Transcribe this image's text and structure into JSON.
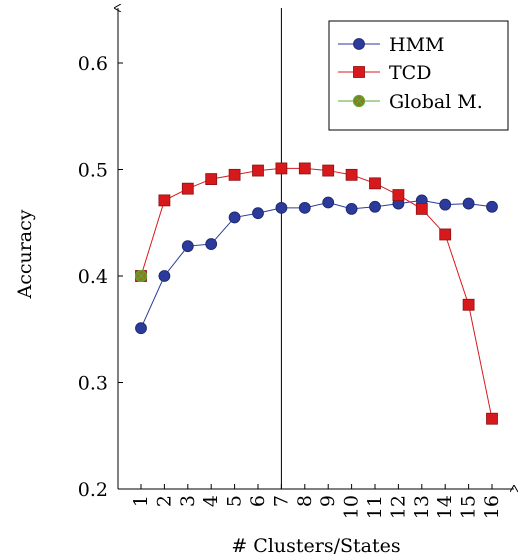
{
  "chart_data": {
    "type": "line",
    "title": "",
    "xlabel": "# Clusters/States",
    "ylabel": "Accuracy",
    "xlim": [
      0.2,
      16.6
    ],
    "ylim": [
      0.2,
      0.66
    ],
    "x_ticks": [
      "1",
      "2",
      "3",
      "4",
      "5",
      "6",
      "7",
      "8",
      "9",
      "10",
      "11",
      "12",
      "13",
      "14",
      "15",
      "16"
    ],
    "y_ticks": [
      "0.2",
      "0.3",
      "0.4",
      "0.5",
      "0.6"
    ],
    "reference_line_x": 7,
    "legend_position": "top-right",
    "grid": false,
    "series": [
      {
        "name": "HMM",
        "color": "#2b3a9b",
        "marker": "circle",
        "x": [
          1,
          2,
          3,
          4,
          5,
          6,
          7,
          8,
          9,
          10,
          11,
          12,
          13,
          14,
          15,
          16
        ],
        "values": [
          0.351,
          0.4,
          0.428,
          0.43,
          0.455,
          0.459,
          0.464,
          0.464,
          0.469,
          0.463,
          0.465,
          0.468,
          0.471,
          0.467,
          0.468,
          0.465
        ]
      },
      {
        "name": "TCD",
        "color": "#d7191c",
        "marker": "square",
        "x": [
          1,
          2,
          3,
          4,
          5,
          6,
          7,
          8,
          9,
          10,
          11,
          12,
          13,
          14,
          15,
          16
        ],
        "values": [
          0.4,
          0.471,
          0.482,
          0.491,
          0.495,
          0.499,
          0.501,
          0.501,
          0.499,
          0.495,
          0.487,
          0.476,
          0.463,
          0.439,
          0.373,
          0.266
        ]
      },
      {
        "name": "Global M.",
        "color": "#5fa532",
        "marker": "crossed-circle",
        "x": [
          1
        ],
        "values": [
          0.4
        ]
      }
    ]
  }
}
